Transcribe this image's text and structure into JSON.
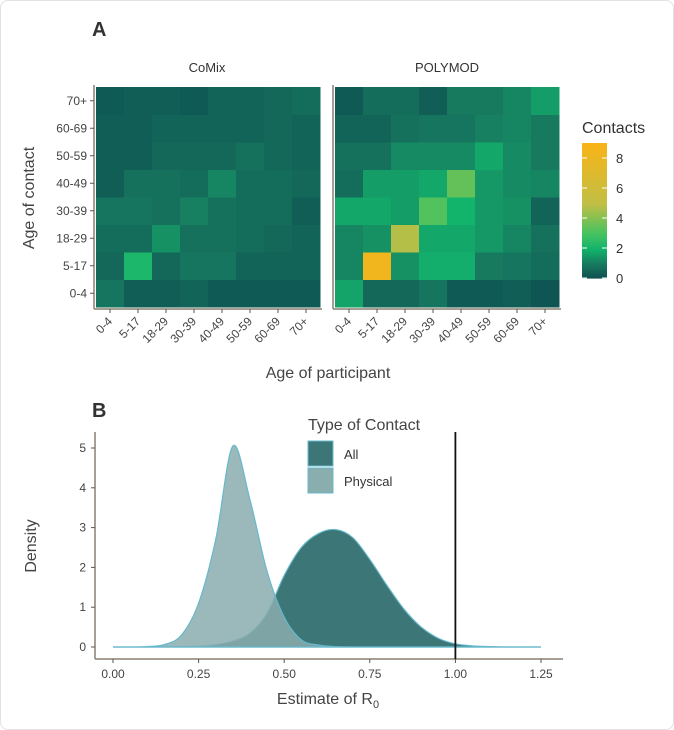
{
  "chart_data": [
    {
      "type": "heatmap",
      "panel_label": "A",
      "xlabel": "Age of participant",
      "ylabel": "Age of contact",
      "age_groups": [
        "0-4",
        "5-17",
        "18-29",
        "30-39",
        "40-49",
        "50-59",
        "60-69",
        "70+"
      ],
      "legend": {
        "title": "Contacts",
        "ticks": [
          0,
          2,
          4,
          6,
          8
        ],
        "range": [
          0,
          9
        ],
        "colors": {
          "low": "#0d4c50",
          "mid": "#12b46c",
          "high": "#f8b418"
        }
      },
      "facets": [
        {
          "name": "CoMix",
          "rows_by_contact_age": {
            "0-4": [
              0.9,
              0.4,
              0.4,
              0.5,
              0.3,
              0.3,
              0.3,
              0.3
            ],
            "5-17": [
              0.6,
              2.2,
              0.6,
              0.9,
              0.9,
              0.5,
              0.5,
              0.5
            ],
            "18-29": [
              0.7,
              0.7,
              1.4,
              0.8,
              0.8,
              0.7,
              0.6,
              0.5
            ],
            "30-39": [
              0.9,
              0.9,
              0.8,
              1.1,
              0.8,
              0.7,
              0.7,
              0.4
            ],
            "40-49": [
              0.4,
              0.8,
              0.8,
              0.7,
              1.2,
              0.7,
              0.7,
              0.6
            ],
            "50-59": [
              0.4,
              0.4,
              0.6,
              0.6,
              0.6,
              0.8,
              0.6,
              0.5
            ],
            "60-69": [
              0.4,
              0.4,
              0.5,
              0.5,
              0.5,
              0.5,
              0.6,
              0.5
            ],
            "70+": [
              0.3,
              0.4,
              0.4,
              0.3,
              0.5,
              0.5,
              0.6,
              0.7
            ]
          }
        },
        {
          "name": "POLYMOD",
          "rows_by_contact_age": {
            "0-4": [
              1.7,
              0.6,
              0.6,
              0.9,
              0.3,
              0.3,
              0.4,
              0.2
            ],
            "5-17": [
              1.2,
              8.5,
              1.4,
              1.9,
              1.9,
              1.0,
              0.9,
              0.7
            ],
            "18-29": [
              1.2,
              1.4,
              4.8,
              1.8,
              1.8,
              1.5,
              1.2,
              0.8
            ],
            "30-39": [
              1.8,
              1.8,
              1.6,
              3.2,
              2.0,
              1.5,
              1.4,
              0.5
            ],
            "40-49": [
              0.7,
              1.6,
              1.6,
              1.8,
              3.5,
              1.5,
              1.3,
              1.2
            ],
            "50-59": [
              0.8,
              0.8,
              1.3,
              1.3,
              1.3,
              1.8,
              1.3,
              1.0
            ],
            "60-69": [
              0.5,
              0.5,
              0.8,
              0.9,
              0.9,
              1.1,
              1.2,
              1.0
            ],
            "70+": [
              0.3,
              0.7,
              0.7,
              0.4,
              1.0,
              1.0,
              1.2,
              1.6
            ]
          }
        }
      ]
    },
    {
      "type": "area",
      "panel_label": "B",
      "xlabel": "Estimate of R",
      "xlabel_subscript": "0",
      "ylabel": "Density",
      "xlim": [
        0,
        1.25
      ],
      "ylim": [
        0,
        5.2
      ],
      "xticks": [
        "0.00",
        "0.25",
        "0.50",
        "0.75",
        "1.00",
        "1.25"
      ],
      "yticks": [
        0,
        1,
        2,
        3,
        4,
        5
      ],
      "reference_line_x": 1.0,
      "legend": {
        "title": "Type of Contact",
        "placement": "top-center"
      },
      "x": [
        0.0,
        0.05,
        0.1,
        0.15,
        0.2,
        0.25,
        0.3,
        0.35,
        0.4,
        0.45,
        0.5,
        0.55,
        0.6,
        0.65,
        0.7,
        0.75,
        0.8,
        0.85,
        0.9,
        0.95,
        1.0,
        1.05,
        1.1,
        1.15,
        1.2,
        1.25
      ],
      "series": [
        {
          "name": "All",
          "color": "#3d7677",
          "values": [
            0,
            0,
            0,
            0,
            0.01,
            0.02,
            0.06,
            0.15,
            0.35,
            0.85,
            1.8,
            2.5,
            2.85,
            2.95,
            2.75,
            2.2,
            1.55,
            0.95,
            0.5,
            0.22,
            0.08,
            0.03,
            0.01,
            0,
            0,
            0
          ]
        },
        {
          "name": "Physical",
          "color": "#8aadae",
          "values": [
            0,
            0,
            0.01,
            0.06,
            0.3,
            1.1,
            2.7,
            5.05,
            3.7,
            1.9,
            0.75,
            0.18,
            0.05,
            0.01,
            0,
            0,
            0,
            0,
            0,
            0,
            0,
            0,
            0,
            0,
            0,
            0
          ]
        }
      ]
    }
  ]
}
